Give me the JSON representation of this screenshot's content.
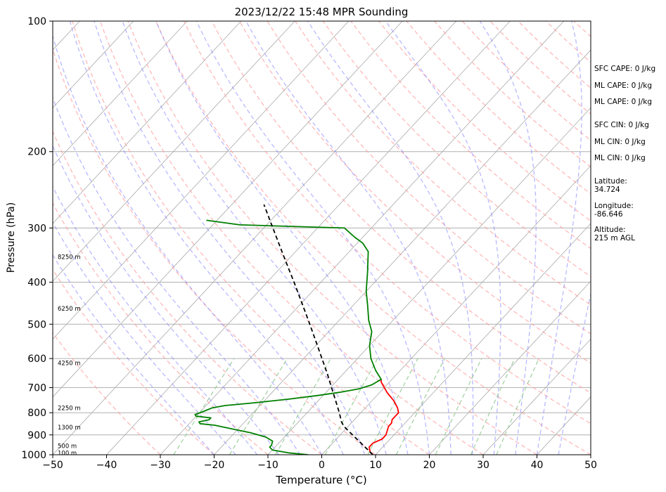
{
  "chart_data": {
    "type": "skew-t",
    "title": "2023/12/22 15:48 MPR Sounding",
    "xlabel": "Temperature (°C)",
    "ylabel": "Pressure (hPa)",
    "xlim": [
      -50,
      50
    ],
    "ylim": [
      1000,
      100
    ],
    "y_scale": "log",
    "grid": true,
    "x_ticks": [
      "−50",
      "−40",
      "−30",
      "−20",
      "−10",
      "0",
      "10",
      "20",
      "30",
      "40",
      "50"
    ],
    "y_ticks": [
      "100",
      "200",
      "300",
      "400",
      "500",
      "600",
      "700",
      "800",
      "900",
      "1000"
    ],
    "height_labels": [
      {
        "p": 990,
        "label": "100 m"
      },
      {
        "p": 955,
        "label": "500 m"
      },
      {
        "p": 865,
        "label": "1300 m"
      },
      {
        "p": 780,
        "label": "2250 m"
      },
      {
        "p": 615,
        "label": "4250 m"
      },
      {
        "p": 460,
        "label": "6250 m"
      },
      {
        "p": 350,
        "label": "8250 m"
      }
    ],
    "series": [
      {
        "color": "#ff0000",
        "points": [
          [
            1000,
            9.5
          ],
          [
            985,
            8.5
          ],
          [
            960,
            7.5
          ],
          [
            940,
            7.5
          ],
          [
            920,
            8.5
          ],
          [
            900,
            8.5
          ],
          [
            880,
            8.0
          ],
          [
            860,
            7.5
          ],
          [
            845,
            7.5
          ],
          [
            830,
            7.0
          ],
          [
            815,
            7.0
          ],
          [
            800,
            7.0
          ],
          [
            780,
            6.0
          ],
          [
            750,
            4.0
          ],
          [
            720,
            1.5
          ],
          [
            700,
            0.0
          ],
          [
            680,
            -1.5
          ],
          [
            670,
            -2.0
          ]
        ]
      },
      {
        "color": "#008000",
        "points": [
          [
            1000,
            -2.5
          ],
          [
            990,
            -6.5
          ],
          [
            975,
            -10.0
          ],
          [
            960,
            -11.0
          ],
          [
            950,
            -11.0
          ],
          [
            930,
            -11.5
          ],
          [
            910,
            -13.5
          ],
          [
            890,
            -17.0
          ],
          [
            870,
            -21.5
          ],
          [
            855,
            -25.0
          ],
          [
            848,
            -28.0
          ],
          [
            840,
            -28.5
          ],
          [
            830,
            -27.0
          ],
          [
            822,
            -27.0
          ],
          [
            815,
            -30.0
          ],
          [
            808,
            -30.5
          ],
          [
            795,
            -29.5
          ],
          [
            780,
            -28.5
          ],
          [
            770,
            -26.5
          ],
          [
            760,
            -22.0
          ],
          [
            745,
            -16.0
          ],
          [
            730,
            -11.0
          ],
          [
            718,
            -7.5
          ],
          [
            705,
            -4.5
          ],
          [
            690,
            -2.8
          ],
          [
            670,
            -2.0
          ],
          [
            640,
            -4.5
          ],
          [
            600,
            -7.5
          ],
          [
            560,
            -10.0
          ],
          [
            520,
            -12.0
          ],
          [
            490,
            -14.5
          ],
          [
            450,
            -17.5
          ],
          [
            420,
            -20.0
          ],
          [
            380,
            -23.0
          ],
          [
            340,
            -26.5
          ],
          [
            325,
            -29.0
          ],
          [
            315,
            -31.5
          ],
          [
            300,
            -35.0
          ],
          [
            295,
            -55.0
          ],
          [
            288,
            -62.0
          ]
        ]
      },
      {
        "style": "dashed",
        "color": "#000000",
        "points": [
          [
            1000,
            9.5
          ],
          [
            950,
            6.0
          ],
          [
            900,
            2.3
          ],
          [
            860,
            -0.8
          ],
          [
            840,
            -2.0
          ],
          [
            800,
            -4.0
          ],
          [
            750,
            -6.8
          ],
          [
            700,
            -9.8
          ],
          [
            650,
            -13.0
          ],
          [
            600,
            -16.6
          ],
          [
            550,
            -20.5
          ],
          [
            500,
            -24.8
          ],
          [
            450,
            -29.6
          ],
          [
            400,
            -35.0
          ],
          [
            350,
            -41.2
          ],
          [
            300,
            -48.3
          ],
          [
            265,
            -54.0
          ]
        ]
      }
    ],
    "reference_lines": {
      "isotherms_color": "#a9a9a9",
      "dry_adiabats_color": "#ff9b9b",
      "moist_adiabats_color": "#8080ff",
      "mixing_ratio_color": "#8fc88f"
    }
  },
  "side_panel": [
    "SFC CAPE: 0 J/kg",
    "ML CAPE: 0 J/kg",
    "ML CAPE: 0 J/kg",
    "SFC CIN: 0 J/kg",
    "ML CIN: 0 J/kg",
    "ML CIN: 0 J/kg",
    "Latitude:\n34.724",
    "Longitude:\n-86.646",
    "Altitude:\n215 m AGL"
  ]
}
